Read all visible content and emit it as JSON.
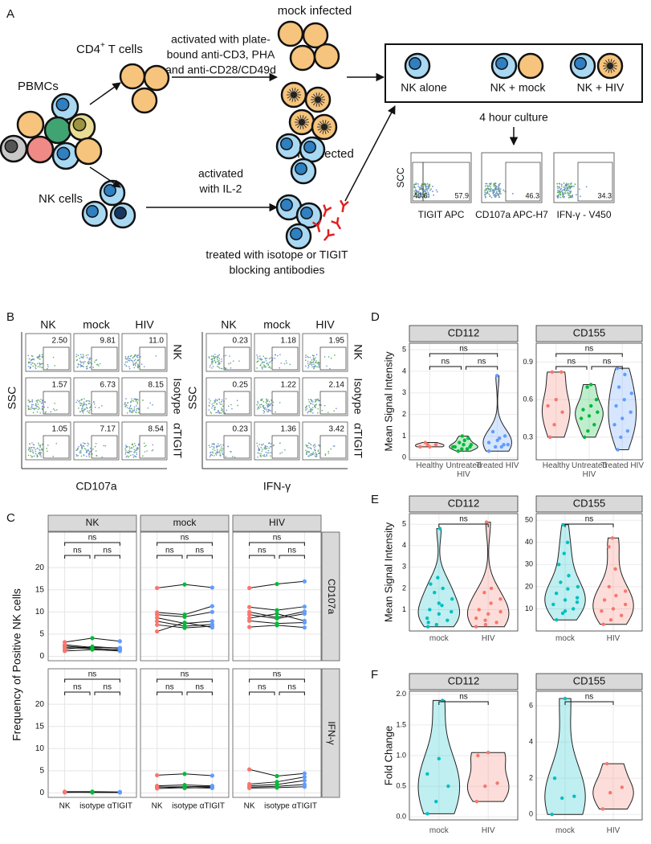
{
  "panel_a": {
    "letter": "A",
    "pbmc_label": "PBMCs",
    "cd4_label": {
      "main": "CD4",
      "sup": "+",
      "rest": " T cells"
    },
    "cd4_activation": [
      "activated with plate-",
      "bound anti-CD3, PHA",
      "and anti-CD28/CD49d"
    ],
    "mock_label": "mock infected",
    "hiv_label": "HIV infected",
    "nk_label": "NK cells",
    "nk_activation": [
      "activated",
      "with IL-2"
    ],
    "treatment": [
      "treated with isotope or TIGIT",
      "blocking antibodies"
    ],
    "conditions": [
      "NK alone",
      "NK + mock",
      "NK + HIV"
    ],
    "culture_label": "4 hour culture",
    "flow": {
      "y_label": "SCC",
      "plots": [
        {
          "x_label": "TIGIT APC",
          "gates": [
            "40.6",
            "57.9"
          ]
        },
        {
          "x_label": "CD107a APC-H7",
          "gates": [
            "46.3"
          ]
        },
        {
          "x_label": "IFN-γ - V450",
          "gates": [
            "34.3"
          ]
        }
      ]
    }
  },
  "panel_b": {
    "letter": "B",
    "grids": [
      {
        "columns": [
          "NK",
          "mock",
          "HIV"
        ],
        "rows": [
          "NK",
          "Isotype",
          "αTIGIT"
        ],
        "values": [
          [
            "2.50",
            "9.81",
            "11.0"
          ],
          [
            "1.57",
            "6.73",
            "8.15"
          ],
          [
            "1.05",
            "7.17",
            "8.54"
          ]
        ],
        "y_label": "SSC",
        "x_label": "CD107a"
      },
      {
        "columns": [
          "NK",
          "mock",
          "HIV"
        ],
        "rows": [
          "NK",
          "Isotype",
          "αTIGIT"
        ],
        "values": [
          [
            "0.23",
            "1.18",
            "1.95"
          ],
          [
            "0.25",
            "1.22",
            "2.14"
          ],
          [
            "0.23",
            "1.36",
            "3.42"
          ]
        ],
        "y_label": "SSC",
        "x_label": "IFN-γ"
      }
    ]
  },
  "chart_data": [
    {
      "type": "paired-line",
      "letter": "C",
      "y_label": "Frequency of Positive NK cells",
      "columns": [
        "NK",
        "mock",
        "HIV"
      ],
      "rows": [
        "CD107a",
        "IFN-γ"
      ],
      "categories": [
        "NK",
        "isotype",
        "αTIGIT"
      ],
      "colors": [
        "#F8766D",
        "#00BA38",
        "#619CFF"
      ],
      "ylim": [
        -1,
        28
      ],
      "yticks": [
        0,
        5,
        10,
        15,
        20
      ],
      "grid": true,
      "facets": [
        {
          "donors": [
            [
              3.2,
              4.1,
              3.4
            ],
            [
              2.6,
              2.0,
              1.9
            ],
            [
              2.0,
              1.7,
              1.5
            ],
            [
              1.6,
              2.2,
              1.8
            ],
            [
              1.2,
              1.5,
              1.2
            ],
            [
              2.3,
              1.8,
              1.4
            ]
          ],
          "significance": [
            "ns",
            "ns",
            "ns"
          ]
        },
        {
          "donors": [
            [
              15.4,
              16.2,
              15.5
            ],
            [
              9.9,
              9.4,
              11.3
            ],
            [
              9.4,
              8.9,
              10.0
            ],
            [
              8.7,
              7.4,
              7.9
            ],
            [
              7.9,
              6.8,
              7.2
            ],
            [
              7.1,
              6.4,
              6.8
            ],
            [
              5.6,
              7.6,
              6.5
            ]
          ],
          "significance": [
            "ns",
            "ns",
            "ns"
          ]
        },
        {
          "donors": [
            [
              15.4,
              16.3,
              16.9
            ],
            [
              11.1,
              10.4,
              11.2
            ],
            [
              10.0,
              8.8,
              10.1
            ],
            [
              9.4,
              8.5,
              9.6
            ],
            [
              8.6,
              9.6,
              8.0
            ],
            [
              8.0,
              7.4,
              7.6
            ],
            [
              6.6,
              7.0,
              6.5
            ]
          ],
          "significance": [
            "ns",
            "ns",
            "ns"
          ]
        },
        {
          "donors": [
            [
              0.3,
              0.3,
              0.2
            ],
            [
              0.2,
              0.2,
              0.2
            ],
            [
              0.1,
              0.2,
              0.1
            ],
            [
              0.2,
              0.1,
              0.1
            ]
          ],
          "significance": [
            "ns",
            "ns",
            "ns"
          ]
        },
        {
          "donors": [
            [
              4.0,
              4.3,
              3.9
            ],
            [
              1.6,
              1.8,
              1.6
            ],
            [
              1.3,
              1.4,
              1.5
            ],
            [
              1.0,
              1.2,
              1.1
            ],
            [
              1.4,
              1.1,
              1.3
            ]
          ],
          "significance": [
            "ns",
            "ns",
            "ns"
          ]
        },
        {
          "donors": [
            [
              5.3,
              3.8,
              4.4
            ],
            [
              2.0,
              2.5,
              3.6
            ],
            [
              1.6,
              1.9,
              2.8
            ],
            [
              1.3,
              1.5,
              1.9
            ],
            [
              1.1,
              1.2,
              1.4
            ]
          ],
          "significance": [
            "ns",
            "ns",
            "ns"
          ]
        }
      ]
    },
    {
      "type": "violin",
      "letter": "D",
      "y_label": "Mean Signal Intensity",
      "categories": [
        "Healthy",
        "Untreated HIV",
        "Treated HIV"
      ],
      "colors": [
        "#F8766D",
        "#00BA38",
        "#619CFF"
      ],
      "grid": true,
      "facets": [
        {
          "title": "CD112",
          "ylim": [
            -0.1,
            5.3
          ],
          "yticks": [
            0,
            1,
            2,
            3,
            4,
            5
          ],
          "groups": [
            [
              0.5,
              0.6,
              0.6,
              0.7,
              0.5
            ],
            [
              0.3,
              0.4,
              0.5,
              0.5,
              0.6,
              0.6,
              0.7,
              0.8,
              0.9,
              1.0,
              0.4,
              0.5
            ],
            [
              0.3,
              0.5,
              0.6,
              0.7,
              0.8,
              1.0,
              1.2,
              0.9,
              0.6,
              3.8,
              0.5
            ]
          ],
          "significance": [
            "ns",
            "ns",
            "ns"
          ]
        },
        {
          "title": "CD155",
          "ylim": [
            0.12,
            1.05
          ],
          "yticks": [
            0.3,
            0.6,
            0.9
          ],
          "groups": [
            [
              0.3,
              0.4,
              0.5,
              0.55,
              0.6,
              0.82,
              0.82
            ],
            [
              0.3,
              0.35,
              0.4,
              0.45,
              0.47,
              0.5,
              0.52,
              0.55,
              0.6,
              0.7,
              0.72
            ],
            [
              0.2,
              0.3,
              0.35,
              0.4,
              0.45,
              0.5,
              0.55,
              0.6,
              0.65,
              0.7,
              0.8,
              0.85
            ]
          ],
          "significance": [
            "ns",
            "ns",
            "ns"
          ]
        }
      ]
    },
    {
      "type": "violin",
      "letter": "E",
      "y_label": "Mean Signal Intensity",
      "categories": [
        "mock",
        "HIV"
      ],
      "colors": [
        "#00BFC4",
        "#F8766D"
      ],
      "grid": true,
      "facets": [
        {
          "title": "CD112",
          "ylim": [
            0,
            5.5
          ],
          "yticks": [
            1,
            2,
            3,
            4,
            5
          ],
          "groups": [
            [
              0.2,
              0.3,
              0.5,
              0.6,
              0.8,
              0.9,
              1.0,
              1.2,
              1.5,
              1.8,
              2.0,
              2.2,
              2.5,
              4.8,
              0.4,
              1.3
            ],
            [
              0.2,
              0.3,
              0.4,
              0.6,
              0.8,
              0.9,
              1.0,
              1.3,
              1.5,
              1.8,
              2.0,
              5.1,
              0.5
            ]
          ],
          "significance": [
            "ns"
          ]
        },
        {
          "title": "CD155",
          "ylim": [
            0,
            53
          ],
          "yticks": [
            10,
            20,
            30,
            40,
            50
          ],
          "groups": [
            [
              5,
              8,
              10,
              12,
              14,
              15,
              17,
              19,
              20,
              22,
              25,
              30,
              35,
              40,
              48,
              9,
              13
            ],
            [
              3,
              5,
              7,
              9,
              10,
              12,
              14,
              16,
              18,
              20,
              28,
              38,
              42
            ]
          ],
          "significance": [
            "ns"
          ]
        }
      ]
    },
    {
      "type": "violin",
      "letter": "F",
      "y_label": "Fold Change",
      "categories": [
        "mock",
        "HIV"
      ],
      "colors": [
        "#00BFC4",
        "#F8766D"
      ],
      "grid": true,
      "facets": [
        {
          "title": "CD112",
          "ylim": [
            -0.05,
            2.05
          ],
          "yticks": [
            {
              "value": 0,
              "label": "0.0"
            },
            0.5,
            {
              "value": 1,
              "label": "1.0"
            },
            1.5,
            {
              "value": 2,
              "label": "2.0"
            }
          ],
          "groups": [
            [
              0.05,
              0.25,
              0.5,
              0.7,
              0.95,
              1.9
            ],
            [
              0.25,
              0.5,
              0.55,
              1.0,
              1.05
            ]
          ],
          "significance": [
            "ns"
          ]
        },
        {
          "title": "CD155",
          "ylim": [
            -0.3,
            6.8
          ],
          "yticks": [
            0,
            2,
            4,
            6
          ],
          "groups": [
            [
              0,
              0.9,
              1.0,
              2,
              6.4
            ],
            [
              0.3,
              1.2,
              1.5,
              2.8
            ]
          ],
          "significance": [
            "ns"
          ]
        }
      ]
    }
  ]
}
